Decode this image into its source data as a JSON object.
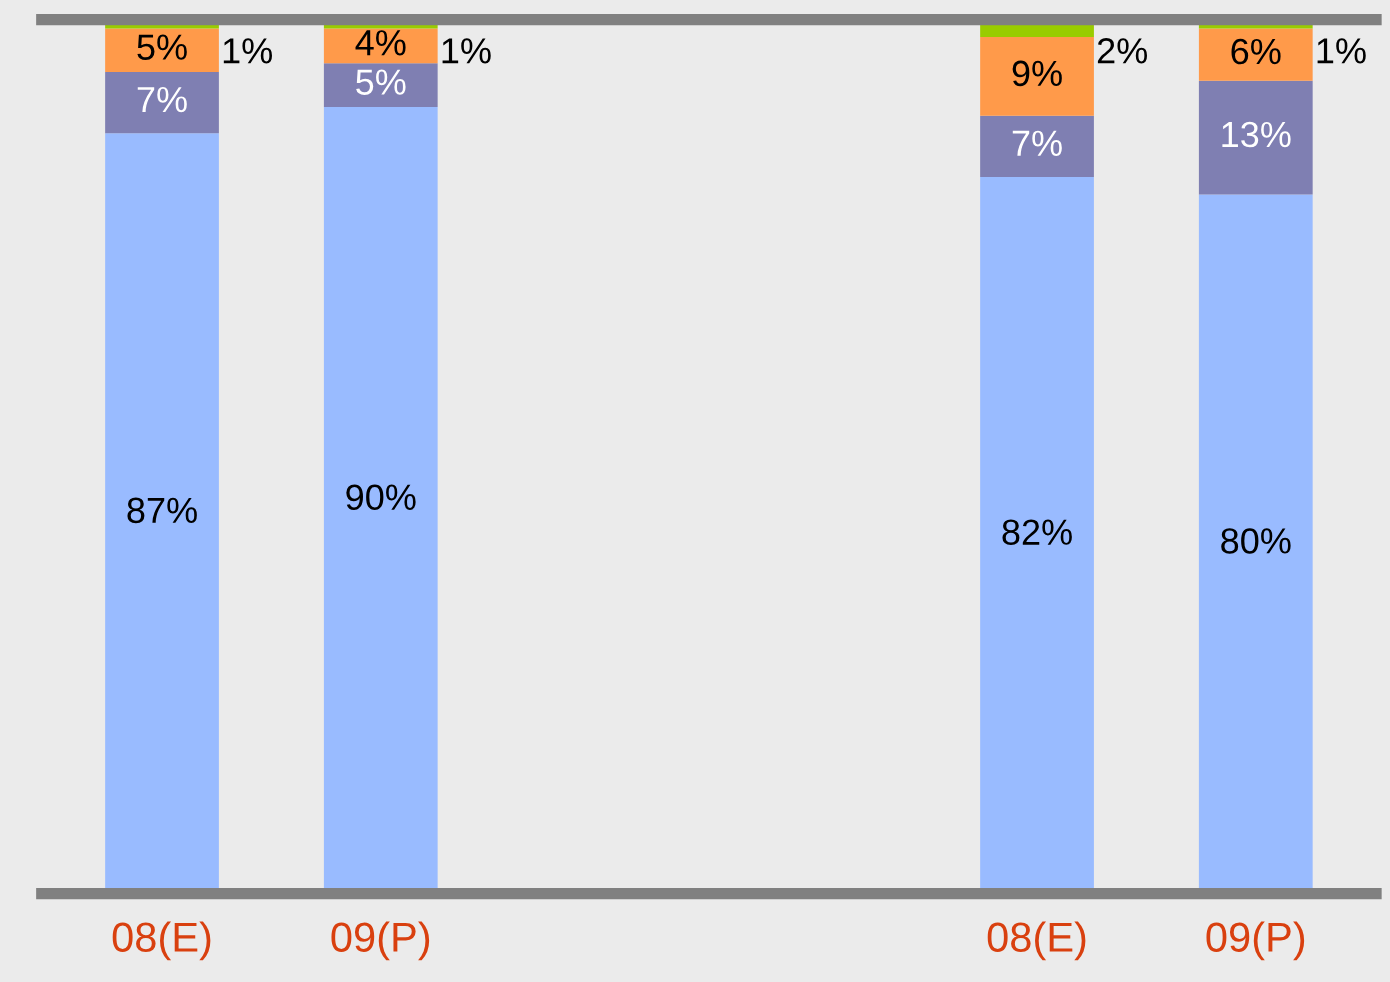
{
  "chart_data": {
    "type": "bar",
    "stacked": true,
    "categories": [
      "08(E)",
      "09(P)",
      null,
      null,
      "08(E)",
      "09(P)"
    ],
    "series": [
      {
        "color": "#99bbff",
        "values": [
          87,
          90,
          null,
          null,
          82,
          80
        ],
        "value_labels": [
          "87%",
          "90%",
          null,
          null,
          "82%",
          "80%"
        ]
      },
      {
        "color": "#7f7fb2",
        "values": [
          7,
          5,
          null,
          null,
          7,
          13
        ],
        "value_labels": [
          "7%",
          "5%",
          null,
          null,
          "7%",
          "13%"
        ]
      },
      {
        "color": "#ff9a4a",
        "values": [
          5,
          4,
          null,
          null,
          9,
          6
        ],
        "value_labels": [
          "5%",
          "4%",
          null,
          null,
          "9%",
          "6%"
        ]
      },
      {
        "color": "#99cc00",
        "values": [
          1,
          1,
          null,
          null,
          2,
          1
        ],
        "value_labels": [
          "1%",
          "1%",
          null,
          null,
          "2%",
          "1%"
        ]
      }
    ],
    "ylim": [
      0,
      100
    ],
    "tick_labels": "x",
    "grid": false,
    "legend": false
  }
}
